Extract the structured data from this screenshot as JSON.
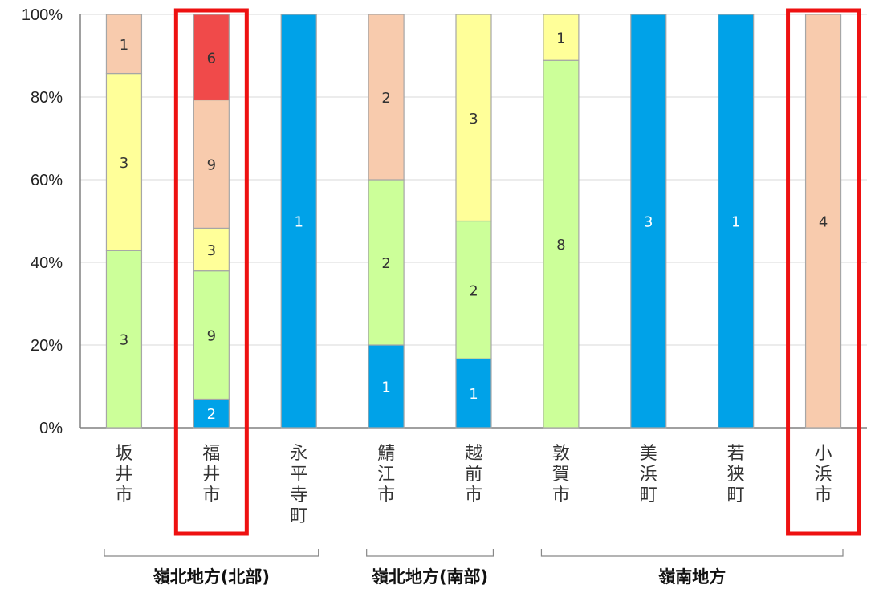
{
  "colors": {
    "blue": "#00a2e8",
    "green": "#ccff99",
    "yellow": "#ffff99",
    "peach": "#f8cbad",
    "red": "#f04a4a",
    "highlight": "#ee1111",
    "gridline": "#d9d9d9",
    "axis": "#808080"
  },
  "chart_data": {
    "type": "bar",
    "stacked": true,
    "normalized": true,
    "grid": true,
    "categories": [
      "坂井市",
      "福井市",
      "永平寺町",
      "鯖江市",
      "越前市",
      "敦賀市",
      "美浜町",
      "若狭町",
      "小浜市"
    ],
    "yticks": [
      "0%",
      "20%",
      "40%",
      "60%",
      "80%",
      "100%"
    ],
    "ylim": [
      0,
      100
    ],
    "series_order_bottom_to_top": [
      "blue",
      "green",
      "yellow",
      "peach",
      "red"
    ],
    "bars": [
      {
        "category": "坂井市",
        "segments": [
          {
            "color": "green",
            "count": 3
          },
          {
            "color": "yellow",
            "count": 3
          },
          {
            "color": "peach",
            "count": 1
          }
        ]
      },
      {
        "category": "福井市",
        "segments": [
          {
            "color": "blue",
            "count": 2
          },
          {
            "color": "green",
            "count": 9
          },
          {
            "color": "yellow",
            "count": 3
          },
          {
            "color": "peach",
            "count": 9
          },
          {
            "color": "red",
            "count": 6
          }
        ]
      },
      {
        "category": "永平寺町",
        "segments": [
          {
            "color": "blue",
            "count": 1
          }
        ]
      },
      {
        "category": "鯖江市",
        "segments": [
          {
            "color": "blue",
            "count": 1
          },
          {
            "color": "green",
            "count": 2
          },
          {
            "color": "peach",
            "count": 2
          }
        ]
      },
      {
        "category": "越前市",
        "segments": [
          {
            "color": "blue",
            "count": 1
          },
          {
            "color": "green",
            "count": 2
          },
          {
            "color": "yellow",
            "count": 3
          }
        ]
      },
      {
        "category": "敦賀市",
        "segments": [
          {
            "color": "green",
            "count": 8
          },
          {
            "color": "yellow",
            "count": 1
          }
        ]
      },
      {
        "category": "美浜町",
        "segments": [
          {
            "color": "blue",
            "count": 3
          }
        ]
      },
      {
        "category": "若狭町",
        "segments": [
          {
            "color": "blue",
            "count": 1
          }
        ]
      },
      {
        "category": "小浜市",
        "segments": [
          {
            "color": "peach",
            "count": 4
          }
        ]
      }
    ],
    "highlighted_categories": [
      "福井市",
      "小浜市"
    ],
    "groups": [
      {
        "label": "嶺北地方(北部)",
        "categories": [
          "坂井市",
          "福井市",
          "永平寺町"
        ]
      },
      {
        "label": "嶺北地方(南部)",
        "categories": [
          "鯖江市",
          "越前市"
        ]
      },
      {
        "label": "嶺南地方",
        "categories": [
          "敦賀市",
          "美浜町",
          "若狭町",
          "小浜市"
        ]
      }
    ]
  }
}
